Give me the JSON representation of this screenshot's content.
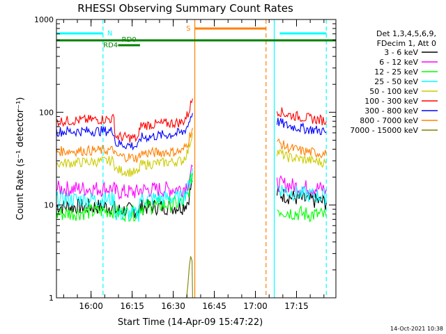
{
  "chart_data": {
    "type": "line",
    "title": "RHESSI Observing Summary Count Rates",
    "xlabel": "Start Time (14-Apr-09 15:47:22)",
    "ylabel": "Count Rate (s⁻¹ detector⁻¹)",
    "yscale": "log",
    "ylim": [
      1,
      1000
    ],
    "xlim_min": [
      0,
      102
    ],
    "y_ticks": [
      {
        "value": 1,
        "label": "1"
      },
      {
        "value": 10,
        "label": "10"
      },
      {
        "value": 100,
        "label": "100"
      },
      {
        "value": 1000,
        "label": "1000"
      }
    ],
    "x_ticks": [
      {
        "min": 12.63,
        "label": "16:00"
      },
      {
        "min": 27.63,
        "label": "16:15"
      },
      {
        "min": 42.63,
        "label": "16:30"
      },
      {
        "min": 57.63,
        "label": "16:45"
      },
      {
        "min": 72.63,
        "label": "17:00"
      },
      {
        "min": 87.63,
        "label": "17:15"
      }
    ],
    "legend": {
      "position": "top-right",
      "header": [
        "Det 1,3,4,5,6,9,",
        "FDecim 1, Att 0"
      ],
      "entries": [
        {
          "label": "3 - 6 keV",
          "color": "#000000"
        },
        {
          "label": "6 - 12 keV",
          "color": "#ff00ff"
        },
        {
          "label": "12 - 25 keV",
          "color": "#00ff00"
        },
        {
          "label": "25 - 50 keV",
          "color": "#00ffff"
        },
        {
          "label": "50 - 100 keV",
          "color": "#cccc00"
        },
        {
          "label": "100 - 300 keV",
          "color": "#ff0000"
        },
        {
          "label": "300 - 800 keV",
          "color": "#0000ff"
        },
        {
          "label": "800 - 7000 keV",
          "color": "#ff8000"
        },
        {
          "label": "7000 - 15000 keV",
          "color": "#808000"
        }
      ]
    },
    "series": [
      {
        "name": "3 - 6 keV",
        "color": "#000000",
        "segments": [
          [
            [
              0,
              9.6
            ],
            [
              21,
              9.6
            ],
            [
              21.5,
              8.8
            ],
            [
              30,
              8.8
            ],
            [
              30.5,
              9.5
            ],
            [
              46,
              9.6
            ],
            [
              48,
              11
            ],
            [
              49,
              15
            ],
            [
              49.7,
              18
            ]
          ],
          [
            [
              80.5,
              13.5
            ],
            [
              84,
              12.5
            ],
            [
              90,
              11.5
            ],
            [
              97,
              10.8
            ],
            [
              98.5,
              10.6
            ]
          ]
        ]
      },
      {
        "name": "6 - 12 keV",
        "color": "#ff00ff",
        "segments": [
          [
            [
              0,
              15
            ],
            [
              21,
              15
            ],
            [
              21.5,
              13.8
            ],
            [
              30,
              13.8
            ],
            [
              30.5,
              14.5
            ],
            [
              46,
              15
            ],
            [
              48,
              17
            ],
            [
              49,
              22
            ],
            [
              49.7,
              26
            ]
          ],
          [
            [
              80.5,
              17
            ],
            [
              84,
              16.5
            ],
            [
              90,
              15.5
            ],
            [
              97,
              15
            ],
            [
              98.5,
              14.8
            ]
          ]
        ]
      },
      {
        "name": "12 - 25 keV",
        "color": "#00ff00",
        "segments": [
          [
            [
              0,
              8
            ],
            [
              21,
              8.8
            ],
            [
              21.5,
              8.2
            ],
            [
              30,
              8.2
            ],
            [
              30.5,
              9.5
            ],
            [
              46,
              10.5
            ],
            [
              48,
              13
            ],
            [
              49,
              18
            ],
            [
              49.7,
              22
            ]
          ],
          [
            [
              80.5,
              9
            ],
            [
              84,
              8.5
            ],
            [
              90,
              8
            ],
            [
              97,
              7.8
            ],
            [
              98.5,
              7.5
            ]
          ]
        ]
      },
      {
        "name": "25 - 50 keV",
        "color": "#00ffff",
        "segments": [
          [
            [
              0,
              11.5
            ],
            [
              21,
              11.5
            ],
            [
              21.5,
              8
            ],
            [
              30,
              8
            ],
            [
              30.5,
              11.5
            ],
            [
              46,
              12
            ],
            [
              48,
              15
            ],
            [
              49,
              20
            ],
            [
              49.7,
              25
            ]
          ],
          [
            [
              80.5,
              15.5
            ],
            [
              84,
              14
            ],
            [
              90,
              13
            ],
            [
              97,
              12.5
            ],
            [
              98.5,
              12
            ]
          ]
        ]
      },
      {
        "name": "50 - 100 keV",
        "color": "#cccc00",
        "segments": [
          [
            [
              0,
              28
            ],
            [
              21,
              30
            ],
            [
              21.5,
              24
            ],
            [
              30,
              22
            ],
            [
              30.5,
              27
            ],
            [
              46,
              30
            ],
            [
              48,
              38
            ],
            [
              49,
              50
            ],
            [
              49.7,
              60
            ]
          ],
          [
            [
              80.5,
              38
            ],
            [
              84,
              33
            ],
            [
              90,
              31
            ],
            [
              97,
              29
            ],
            [
              98.5,
              28
            ]
          ]
        ]
      },
      {
        "name": "100 - 300 keV",
        "color": "#ff0000",
        "segments": [
          [
            [
              0,
              80
            ],
            [
              21,
              85
            ],
            [
              21.5,
              55
            ],
            [
              30,
              52
            ],
            [
              30.5,
              72
            ],
            [
              46,
              78
            ],
            [
              48,
              95
            ],
            [
              49,
              120
            ],
            [
              49.7,
              140
            ]
          ],
          [
            [
              80.5,
              105
            ],
            [
              84,
              95
            ],
            [
              90,
              88
            ],
            [
              97,
              82
            ],
            [
              98.5,
              80
            ]
          ]
        ]
      },
      {
        "name": "300 - 800 keV",
        "color": "#0000ff",
        "segments": [
          [
            [
              0,
              62
            ],
            [
              21,
              63
            ],
            [
              21.5,
              46
            ],
            [
              30,
              43
            ],
            [
              30.5,
              53
            ],
            [
              46,
              60
            ],
            [
              48,
              72
            ],
            [
              49,
              90
            ],
            [
              49.7,
              98
            ]
          ],
          [
            [
              80.5,
              80
            ],
            [
              84,
              72
            ],
            [
              90,
              67
            ],
            [
              97,
              63
            ],
            [
              98.5,
              60
            ]
          ]
        ]
      },
      {
        "name": "800 - 7000 keV",
        "color": "#ff8000",
        "segments": [
          [
            [
              0,
              38
            ],
            [
              21,
              39
            ],
            [
              21.5,
              34
            ],
            [
              30,
              32
            ],
            [
              30.5,
              36
            ],
            [
              46,
              38
            ],
            [
              48,
              48
            ],
            [
              49,
              60
            ],
            [
              49.7,
              68
            ]
          ],
          [
            [
              80.5,
              48
            ],
            [
              84,
              42
            ],
            [
              90,
              38
            ],
            [
              97,
              36
            ],
            [
              98.5,
              35
            ]
          ]
        ]
      },
      {
        "name": "7000 - 15000 keV",
        "color": "#808000",
        "segments": [
          [
            [
              47.5,
              1
            ],
            [
              48,
              1.4
            ],
            [
              48.5,
              2.2
            ],
            [
              49,
              2.8
            ],
            [
              49.5,
              2.5
            ],
            [
              49.7,
              1
            ]
          ]
        ]
      }
    ],
    "annotations": [
      {
        "label": "N",
        "color": "#00ffff",
        "from": 0,
        "to": 17
      },
      {
        "label": "N",
        "color": "#00ffff",
        "from": 81.5,
        "to": 98.5
      },
      {
        "label": "S",
        "color": "#ff8000",
        "from": 50.5,
        "to": 76.5
      },
      {
        "label": "RD0",
        "color": "#008000",
        "from": 22.5,
        "to": 30.5
      },
      {
        "label": "RD4",
        "color": "#008000",
        "from": 17,
        "to": 22.5
      },
      {
        "color": "#008000",
        "from": 0,
        "to": 102
      }
    ],
    "vertical_markers": [
      {
        "min": 17,
        "color": "#00ffff",
        "style": "dashed"
      },
      {
        "min": 50.5,
        "color": "#ff8000",
        "style": "solid"
      },
      {
        "min": 76.5,
        "color": "#ff8000",
        "style": "dashed"
      },
      {
        "min": 79.5,
        "color": "#00ffff",
        "style": "solid"
      },
      {
        "min": 98.5,
        "color": "#00ffff",
        "style": "dashed"
      }
    ],
    "gaps": [
      [
        49.7,
        80.5
      ]
    ]
  },
  "timestamp": "14-Oct-2021 10:38"
}
